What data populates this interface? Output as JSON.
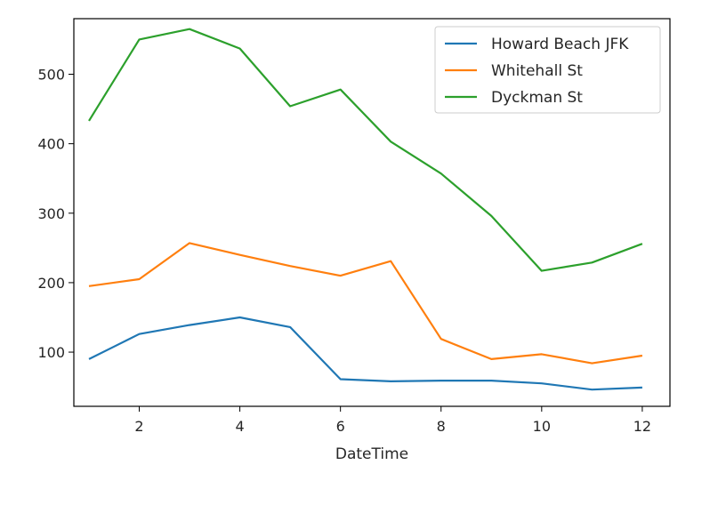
{
  "chart_data": {
    "type": "line",
    "title": "",
    "xlabel": "DateTime",
    "ylabel": "",
    "xlim": [
      0.7,
      12.55
    ],
    "ylim": [
      22,
      580
    ],
    "xticks": [
      2,
      4,
      6,
      8,
      10,
      12
    ],
    "yticks": [
      100,
      200,
      300,
      400,
      500
    ],
    "grid": false,
    "legend_position": "top-right",
    "x": [
      1,
      2,
      3,
      4,
      5,
      6,
      7,
      8,
      9,
      10,
      11,
      12
    ],
    "series": [
      {
        "name": "Howard Beach JFK",
        "color": "#1f77b4",
        "values": [
          90,
          126,
          139,
          150,
          136,
          61,
          58,
          59,
          59,
          55,
          46,
          49
        ]
      },
      {
        "name": "Whitehall St",
        "color": "#ff7f0e",
        "values": [
          195,
          205,
          257,
          240,
          224,
          210,
          231,
          119,
          90,
          97,
          84,
          95
        ]
      },
      {
        "name": "Dyckman St",
        "color": "#2ca02c",
        "values": [
          433,
          550,
          565,
          537,
          454,
          478,
          403,
          357,
          296,
          217,
          229,
          256
        ]
      }
    ]
  }
}
